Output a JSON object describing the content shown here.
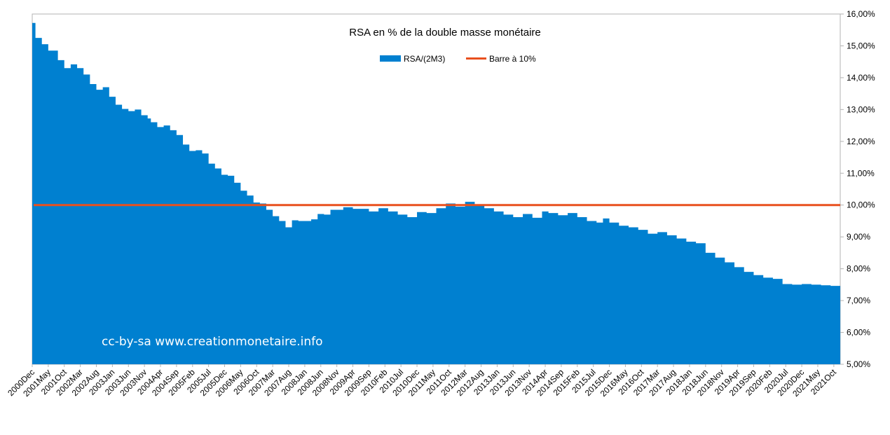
{
  "chart_data": {
    "type": "area",
    "title": "RSA en % de la double masse monétaire",
    "watermark": "cc-by-sa www.creationmonetaire.info",
    "legend": {
      "placement": "top-center",
      "entries": [
        {
          "label": "RSA/(2M3)",
          "color": "#0080d0",
          "kind": "area"
        },
        {
          "label": "Barre à 10%",
          "color": "#e8501e",
          "kind": "line"
        }
      ]
    },
    "yaxis": {
      "position": "right",
      "min": 5,
      "max": 16,
      "step": 1,
      "ticks": [
        "5,00%",
        "6,00%",
        "7,00%",
        "8,00%",
        "9,00%",
        "10,00%",
        "11,00%",
        "12,00%",
        "13,00%",
        "14,00%",
        "15,00%",
        "16,00%"
      ]
    },
    "xaxis": {
      "start": "2000-12",
      "end": "2021-12",
      "tick_every_months": 5,
      "tick_labels": [
        "2000Dec",
        "2001May",
        "2001Oct",
        "2002Mar",
        "2002Aug",
        "2003Jan",
        "2003Jun",
        "2003Nov",
        "2004Apr",
        "2004Sep",
        "2005Feb",
        "2005Jul",
        "2005Dec",
        "2006May",
        "2006Oct",
        "2007Mar",
        "2007Aug",
        "2008Jan",
        "2008Jun",
        "2008Nov",
        "2009Apr",
        "2009Sep",
        "2010Feb",
        "2010Jul",
        "2010Dec",
        "2011May",
        "2011Oct",
        "2012Mar",
        "2012Aug",
        "2013Jan",
        "2013Jun",
        "2013Nov",
        "2014Apr",
        "2014Sep",
        "2015Feb",
        "2015Jul",
        "2015Dec",
        "2016May",
        "2016Oct",
        "2017Mar",
        "2017Aug",
        "2018Jan",
        "2018Jun",
        "2018Nov",
        "2019Apr",
        "2019Sep",
        "2020Feb",
        "2020Jul",
        "2020Dec",
        "2021May",
        "2021Oct"
      ]
    },
    "grid": false,
    "threshold": 10,
    "series": [
      {
        "name": "RSA/(2M3)",
        "x": [
          "2000-12",
          "2001-01",
          "2001-03",
          "2001-05",
          "2001-08",
          "2001-10",
          "2001-12",
          "2002-02",
          "2002-04",
          "2002-06",
          "2002-08",
          "2002-10",
          "2002-12",
          "2003-02",
          "2003-04",
          "2003-06",
          "2003-08",
          "2003-10",
          "2003-12",
          "2004-01",
          "2004-03",
          "2004-05",
          "2004-07",
          "2004-09",
          "2004-11",
          "2005-01",
          "2005-03",
          "2005-05",
          "2005-07",
          "2005-09",
          "2005-11",
          "2006-01",
          "2006-03",
          "2006-05",
          "2006-07",
          "2006-09",
          "2006-11",
          "2007-01",
          "2007-03",
          "2007-05",
          "2007-07",
          "2007-09",
          "2007-11",
          "2008-01",
          "2008-03",
          "2008-05",
          "2008-07",
          "2008-09",
          "2008-11",
          "2009-01",
          "2009-04",
          "2009-09",
          "2009-12",
          "2010-03",
          "2010-06",
          "2010-09",
          "2010-12",
          "2011-03",
          "2011-06",
          "2011-09",
          "2011-12",
          "2012-03",
          "2012-06",
          "2012-09",
          "2012-12",
          "2013-03",
          "2013-06",
          "2013-09",
          "2013-12",
          "2014-03",
          "2014-05",
          "2014-08",
          "2014-11",
          "2015-02",
          "2015-05",
          "2015-08",
          "2015-10",
          "2015-12",
          "2016-03",
          "2016-06",
          "2016-09",
          "2016-12",
          "2017-03",
          "2017-06",
          "2017-09",
          "2017-12",
          "2018-03",
          "2018-06",
          "2018-09",
          "2018-12",
          "2019-03",
          "2019-06",
          "2019-09",
          "2019-12",
          "2020-03",
          "2020-06",
          "2020-09",
          "2020-12",
          "2021-03",
          "2021-06",
          "2021-09",
          "2021-12"
        ],
        "y": [
          15.72,
          15.25,
          15.05,
          14.85,
          14.55,
          14.3,
          14.42,
          14.3,
          14.1,
          13.8,
          13.62,
          13.7,
          13.4,
          13.15,
          13.02,
          12.95,
          13.0,
          12.82,
          12.72,
          12.6,
          12.45,
          12.5,
          12.35,
          12.2,
          11.9,
          11.7,
          11.72,
          11.62,
          11.3,
          11.15,
          10.95,
          10.92,
          10.7,
          10.45,
          10.3,
          10.08,
          10.05,
          9.85,
          9.65,
          9.5,
          9.3,
          9.52,
          9.5,
          9.5,
          9.55,
          9.72,
          9.7,
          9.85,
          9.85,
          9.93,
          9.88,
          9.8,
          9.9,
          9.8,
          9.7,
          9.62,
          9.78,
          9.75,
          9.9,
          10.05,
          9.95,
          10.1,
          10.0,
          9.9,
          9.8,
          9.7,
          9.62,
          9.72,
          9.6,
          9.8,
          9.75,
          9.68,
          9.75,
          9.62,
          9.5,
          9.45,
          9.58,
          9.45,
          9.35,
          9.3,
          9.22,
          9.1,
          9.15,
          9.05,
          8.95,
          8.85,
          8.8,
          8.5,
          8.35,
          8.2,
          8.05,
          7.9,
          7.8,
          7.72,
          7.68,
          7.52,
          7.5,
          7.52,
          7.5,
          7.48,
          7.46,
          7.45
        ]
      },
      {
        "name": "Barre à 10%",
        "value": 10
      }
    ]
  }
}
